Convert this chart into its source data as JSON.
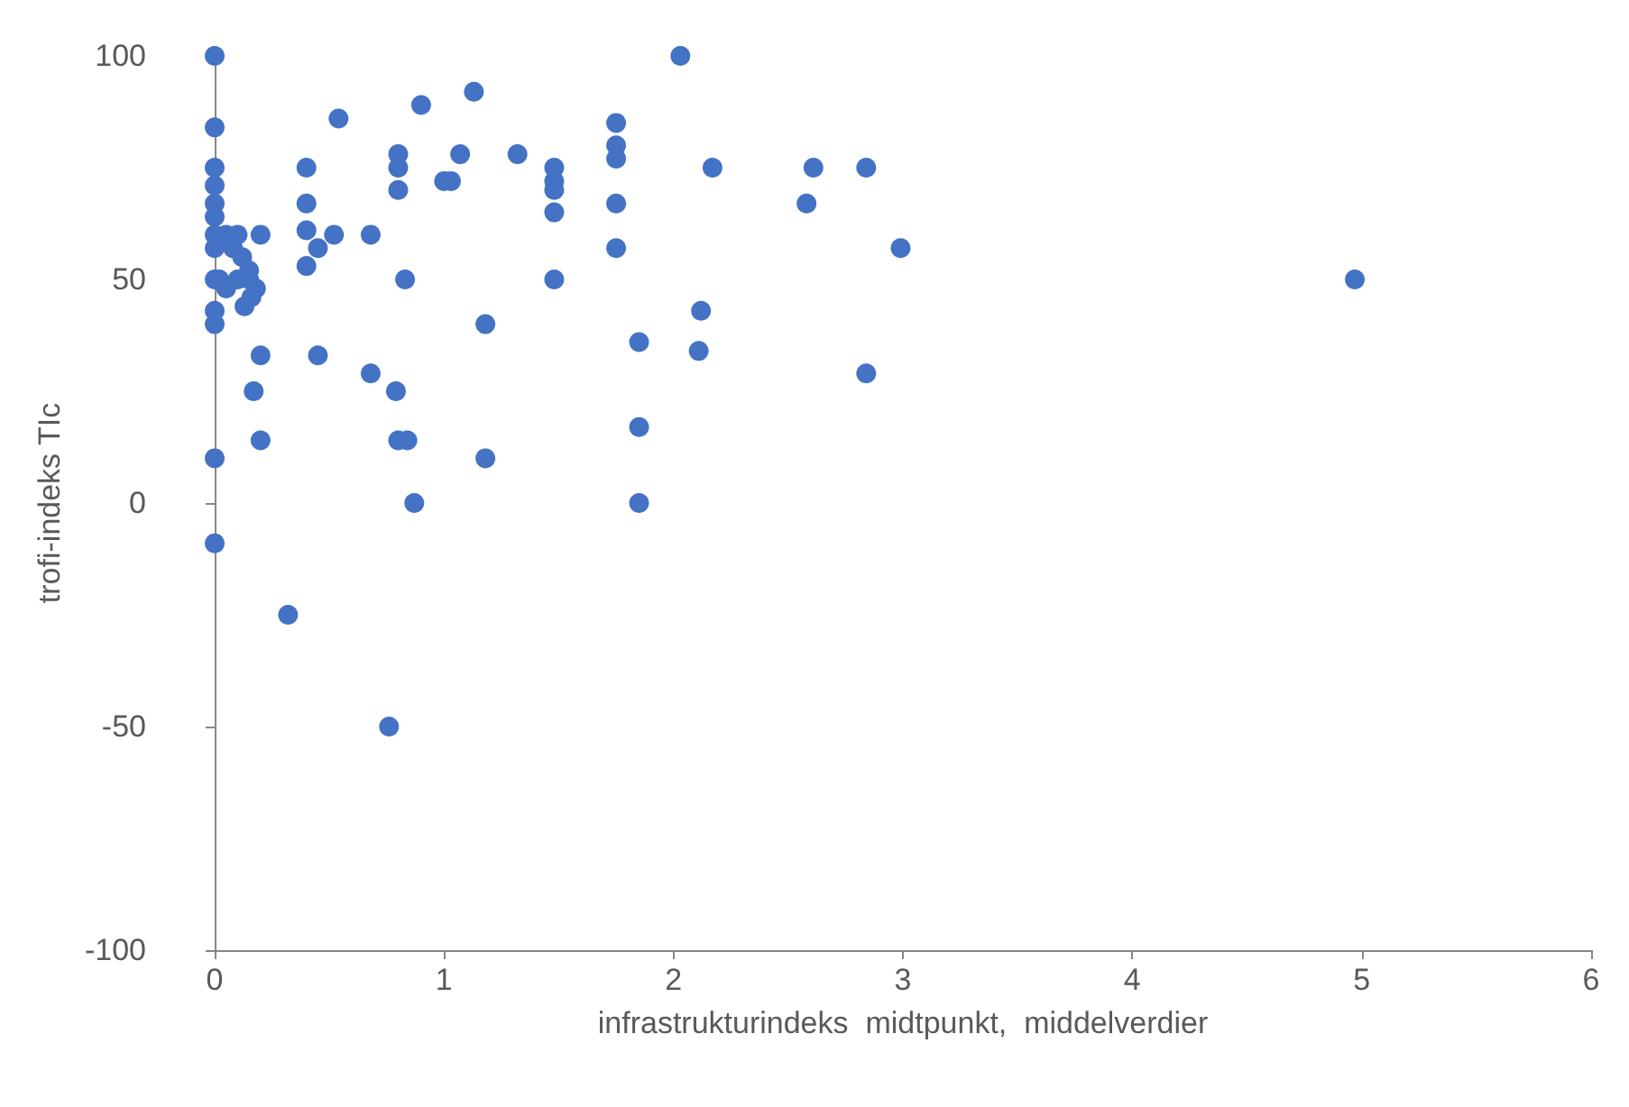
{
  "chart_data": {
    "type": "scatter",
    "xlabel": "infrastrukturindeks  midtpunkt,  middelverdier",
    "ylabel": "trofi-indeks TIc",
    "xlim": [
      0,
      6
    ],
    "xticks": [
      0,
      1,
      2,
      3,
      4,
      5,
      6
    ],
    "ylim": [
      -100,
      100
    ],
    "yticks": [
      -100,
      -50,
      0,
      50,
      100
    ],
    "grid": false,
    "marker": "circle",
    "series": [
      {
        "color": "#4472c4",
        "x": [
          0,
          0,
          0,
          0,
          0,
          0,
          0,
          0,
          0,
          0,
          0,
          0,
          0,
          0.05,
          0.1,
          0.08,
          0.12,
          0.15,
          0.02,
          0.1,
          0.15,
          0.18,
          0.05,
          0.13,
          0.16,
          0.2,
          0.17,
          0.2,
          0.2,
          0.32,
          0.4,
          0.4,
          0.4,
          0.4,
          0.45,
          0.45,
          0.52,
          0.54,
          0.68,
          0.68,
          0.76,
          0.79,
          0.8,
          0.8,
          0.8,
          0.8,
          0.84,
          0.83,
          0.87,
          0.9,
          1,
          1.03,
          1.07,
          1.13,
          1.18,
          1.18,
          1.32,
          1.48,
          1.48,
          1.48,
          1.48,
          1.48,
          1.75,
          1.75,
          1.75,
          1.75,
          1.75,
          1.85,
          1.85,
          1.85,
          2.03,
          2.12,
          2.11,
          2.17,
          2.58,
          2.61,
          2.84,
          2.84,
          2.99,
          4.97
        ],
        "values": [
          100,
          84,
          75,
          71,
          67,
          64,
          60,
          57,
          50,
          43,
          40,
          10,
          -9,
          60,
          60,
          57,
          55,
          52,
          50,
          50,
          50,
          48,
          48,
          44,
          46,
          60,
          25,
          33,
          14,
          -25,
          75,
          67,
          61,
          53,
          57,
          33,
          60,
          86,
          60,
          29,
          -50,
          25,
          78,
          75,
          70,
          14,
          14,
          50,
          0,
          89,
          72,
          72,
          78,
          92,
          40,
          10,
          78,
          75,
          72,
          70,
          65,
          50,
          85,
          80,
          77,
          67,
          57,
          36,
          17,
          0,
          100,
          43,
          34,
          75,
          67,
          75,
          75,
          29,
          57,
          50
        ]
      }
    ]
  }
}
